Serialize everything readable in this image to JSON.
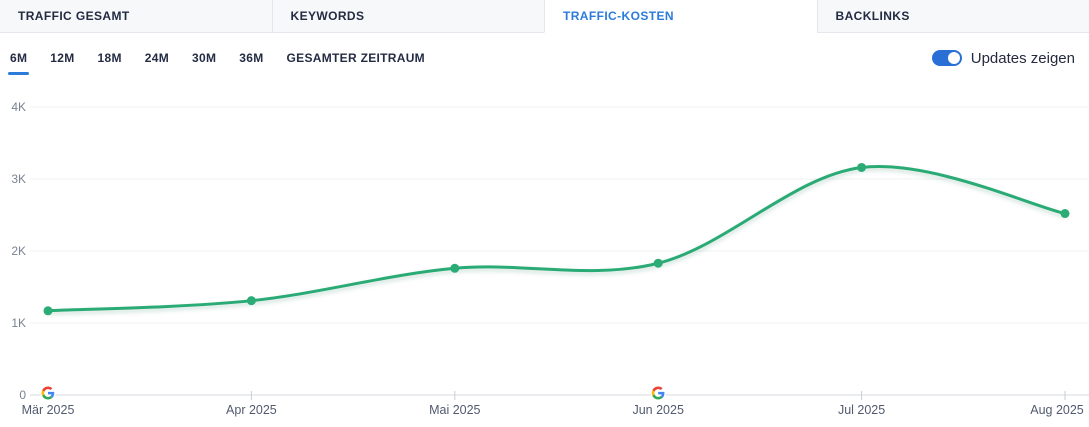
{
  "tabs": [
    {
      "label": "TRAFFIC GESAMT",
      "active": false
    },
    {
      "label": "KEYWORDS",
      "active": false
    },
    {
      "label": "TRAFFIC-KOSTEN",
      "active": true
    },
    {
      "label": "BACKLINKS",
      "active": false
    }
  ],
  "period_selector": {
    "options": [
      "6M",
      "12M",
      "18M",
      "24M",
      "30M",
      "36M",
      "GESAMTER ZEITRAUM"
    ],
    "active": "6M"
  },
  "updates_toggle": {
    "label": "Updates zeigen",
    "state": "on"
  },
  "colors": {
    "accent_blue": "#2b7bda",
    "line_green": "#2bab76",
    "grid": "#eef0f3",
    "axis": "#d8dbe1",
    "ytick_text": "#7b8292",
    "xtick_text": "#515a6e",
    "google_blue": "#4285F4",
    "google_green": "#34A853",
    "google_yellow": "#FBBC05",
    "google_red": "#EA4335"
  },
  "chart_data": {
    "type": "line",
    "title": "",
    "xlabel": "",
    "ylabel": "",
    "x": [
      "Mär 2025",
      "Apr 2025",
      "Mai 2025",
      "Jun 2025",
      "Jul 2025",
      "Aug 2025"
    ],
    "series": [
      {
        "name": "Traffic-Kosten",
        "values": [
          1170,
          1310,
          1760,
          1830,
          3160,
          2520
        ]
      }
    ],
    "ylim": [
      0,
      4000
    ],
    "yticks": [
      "0",
      "1K",
      "2K",
      "3K",
      "4K"
    ],
    "ytick_values": [
      0,
      1000,
      2000,
      3000,
      4000
    ],
    "grid": "horizontal",
    "legend": "none",
    "google_update_markers": [
      "Mär 2025",
      "Jun 2025"
    ]
  }
}
